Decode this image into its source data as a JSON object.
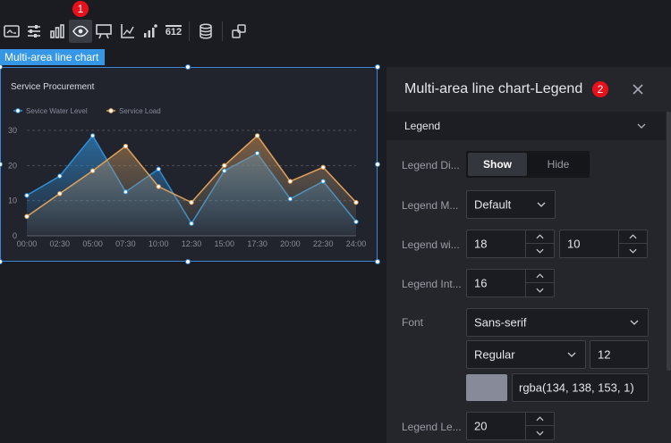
{
  "toolbar": {
    "items": [
      {
        "icon": "title-icon"
      },
      {
        "icon": "sliders-icon"
      },
      {
        "icon": "bar-chart-icon"
      },
      {
        "icon": "eye-icon"
      },
      {
        "icon": "tooltip-icon"
      },
      {
        "icon": "axis-icon"
      },
      {
        "icon": "data-label-icon"
      },
      {
        "icon": "number-612-icon",
        "text": "612"
      },
      {
        "icon": "database-icon"
      },
      {
        "icon": "interaction-icon"
      }
    ],
    "badge": "1"
  },
  "chart_tag": "Multi-area line chart",
  "chart_data": {
    "type": "area",
    "title": "Service Procurement",
    "x": [
      "00:00",
      "02:30",
      "05:00",
      "07:30",
      "10:00",
      "12:30",
      "15:00",
      "17:30",
      "20:00",
      "22:30",
      "24:00"
    ],
    "ylim": [
      0,
      30
    ],
    "yticks": [
      0,
      10,
      20,
      30
    ],
    "grid": true,
    "legend_position": "top-left",
    "series": [
      {
        "name": "Sevice Water Level",
        "color": "#2f8fd8",
        "values": [
          11.5,
          17,
          28.5,
          12.5,
          19,
          3.5,
          18.5,
          23.5,
          10.5,
          15.5,
          4
        ]
      },
      {
        "name": "Service Load",
        "color": "#e0a15a",
        "values": [
          5.5,
          12,
          18.5,
          25.5,
          14,
          9.5,
          20,
          28.5,
          15.5,
          19.5,
          9.5
        ]
      }
    ]
  },
  "panel": {
    "title": "Multi-area line chart-Legend",
    "badge": "2",
    "section": "Legend",
    "display_label": "Legend Di...",
    "display_options": [
      "Show",
      "Hide"
    ],
    "display_selected": "Show",
    "mode_label": "Legend M...",
    "mode_value": "Default",
    "width_label": "Legend wi...",
    "width_value": "18",
    "height_value": "10",
    "interval_label": "Legend Int...",
    "interval_value": "16",
    "font_label": "Font",
    "font_family": "Sans-serif",
    "font_weight": "Regular",
    "font_size": "12",
    "font_color": "rgba(134, 138, 153, 1)",
    "length_label": "Legend Le...",
    "length_value": "20"
  }
}
